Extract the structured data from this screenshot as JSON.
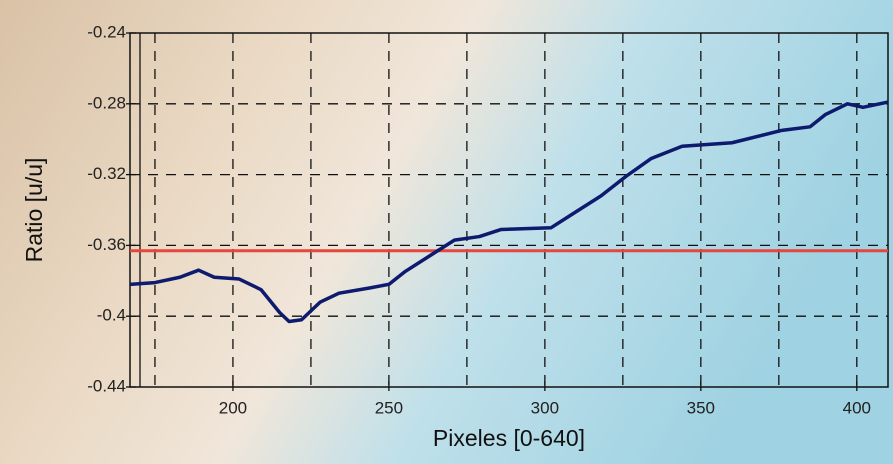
{
  "chart_data": {
    "type": "line",
    "x_label": "Pixeles [0-640]",
    "y_label": "Ratio [u/u]",
    "x": [
      167,
      175,
      183,
      189,
      194,
      202,
      209,
      215,
      218,
      222,
      228,
      234,
      244,
      250,
      255,
      263,
      271,
      279,
      286,
      302,
      310,
      318,
      326,
      334,
      344,
      360,
      376,
      385,
      390,
      397,
      402,
      410
    ],
    "series": [
      {
        "color": "#0d1a6e",
        "values": [
          -0.382,
          -0.381,
          -0.378,
          -0.374,
          -0.378,
          -0.379,
          -0.385,
          -0.398,
          -0.403,
          -0.402,
          -0.392,
          -0.387,
          -0.384,
          -0.382,
          -0.375,
          -0.366,
          -0.357,
          -0.355,
          -0.351,
          -0.35,
          -0.341,
          -0.332,
          -0.321,
          -0.311,
          -0.304,
          -0.302,
          -0.295,
          -0.293,
          -0.286,
          -0.28,
          -0.282,
          -0.279
        ]
      }
    ],
    "threshold": {
      "value": -0.363,
      "color": "#e8453c"
    },
    "xlim": [
      167,
      410
    ],
    "ylim": [
      -0.44,
      -0.24
    ],
    "xticks": [
      200,
      250,
      300,
      350,
      400
    ],
    "yticks": [
      -0.44,
      -0.4,
      -0.36,
      -0.32,
      -0.28,
      -0.24
    ],
    "x_grid": [
      175,
      200,
      225,
      250,
      275,
      300,
      325,
      350,
      375,
      400
    ],
    "grid": true
  }
}
